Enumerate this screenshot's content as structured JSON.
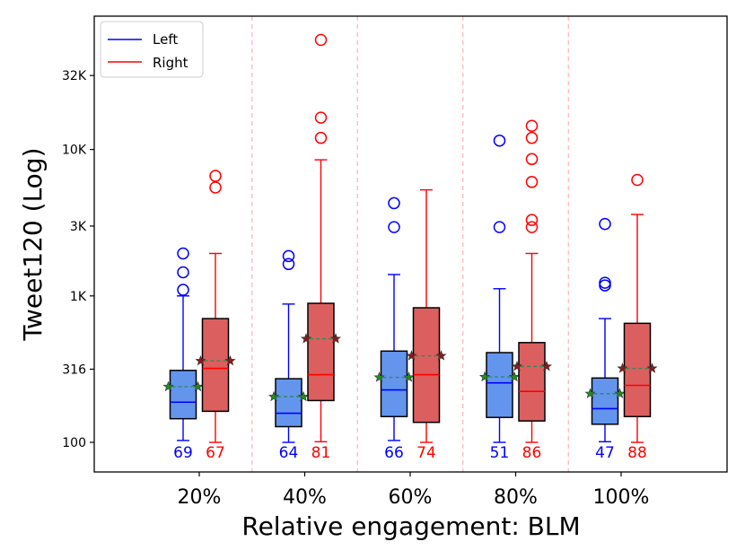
{
  "chart_data": {
    "type": "box",
    "title": "",
    "xlabel": "Relative engagement: BLM",
    "ylabel": "Tweet120 (Log)",
    "y_scale": "log",
    "ylim": [
      70,
      90000
    ],
    "yticks": [
      {
        "value": 100,
        "label": "100"
      },
      {
        "value": 316,
        "label": "316"
      },
      {
        "value": 1000,
        "label": "1K"
      },
      {
        "value": 3000,
        "label": "3K"
      },
      {
        "value": 10000,
        "label": "10K"
      },
      {
        "value": 32000,
        "label": "32K"
      }
    ],
    "categories": [
      "20%",
      "40%",
      "60%",
      "80%",
      "100%"
    ],
    "legend": {
      "position": "top-left",
      "entries": [
        "Left",
        "Right"
      ]
    },
    "colors": {
      "left_line": "#0000ff",
      "left_fill": "#6495ed",
      "right_line": "#ff0000",
      "right_fill": "#dc5f5f",
      "mean_line": "#2e8b57",
      "left_star": "#228b22",
      "right_star": "#8b1a1a",
      "separator": "#ffb6c1",
      "box_edge": "#000000"
    },
    "series": [
      {
        "name": "Left",
        "boxes": [
          {
            "whisker_low": 103,
            "q1": 145,
            "median": 188,
            "q3": 310,
            "whisker_high": 1000,
            "mean": 240,
            "outliers": [
              1100,
              1450,
              1950
            ],
            "count": "69"
          },
          {
            "whisker_low": 100,
            "q1": 128,
            "median": 158,
            "q3": 272,
            "whisker_high": 880,
            "mean": 205,
            "outliers": [
              1650,
              1870
            ],
            "count": "64"
          },
          {
            "whisker_low": 103,
            "q1": 150,
            "median": 228,
            "q3": 420,
            "whisker_high": 1400,
            "mean": 278,
            "outliers": [
              2950,
              4300
            ],
            "count": "66"
          },
          {
            "whisker_low": 100,
            "q1": 148,
            "median": 255,
            "q3": 410,
            "whisker_high": 1120,
            "mean": 280,
            "outliers": [
              2950,
              11500
            ],
            "count": "51"
          },
          {
            "whisker_low": 101,
            "q1": 133,
            "median": 170,
            "q3": 275,
            "whisker_high": 700,
            "mean": 215,
            "outliers": [
              1180,
              1230,
              3100
            ],
            "count": "47"
          }
        ]
      },
      {
        "name": "Right",
        "boxes": [
          {
            "whisker_low": 100,
            "q1": 163,
            "median": 320,
            "q3": 700,
            "whisker_high": 1950,
            "mean": 360,
            "outliers": [
              5500,
              6600
            ],
            "count": "67"
          },
          {
            "whisker_low": 101,
            "q1": 193,
            "median": 290,
            "q3": 890,
            "whisker_high": 8500,
            "mean": 510,
            "outliers": [
              12000,
              16500,
              56000
            ],
            "count": "81"
          },
          {
            "whisker_low": 100,
            "q1": 137,
            "median": 290,
            "q3": 830,
            "whisker_high": 5300,
            "mean": 390,
            "outliers": [],
            "count": "74"
          },
          {
            "whisker_low": 100,
            "q1": 140,
            "median": 223,
            "q3": 480,
            "whisker_high": 1950,
            "mean": 330,
            "outliers": [
              2950,
              3300,
              6000,
              8600,
              12000,
              14500
            ],
            "count": "86"
          },
          {
            "whisker_low": 100,
            "q1": 150,
            "median": 245,
            "q3": 650,
            "whisker_high": 3600,
            "mean": 320,
            "outliers": [
              6200
            ],
            "count": "88"
          }
        ]
      }
    ]
  }
}
